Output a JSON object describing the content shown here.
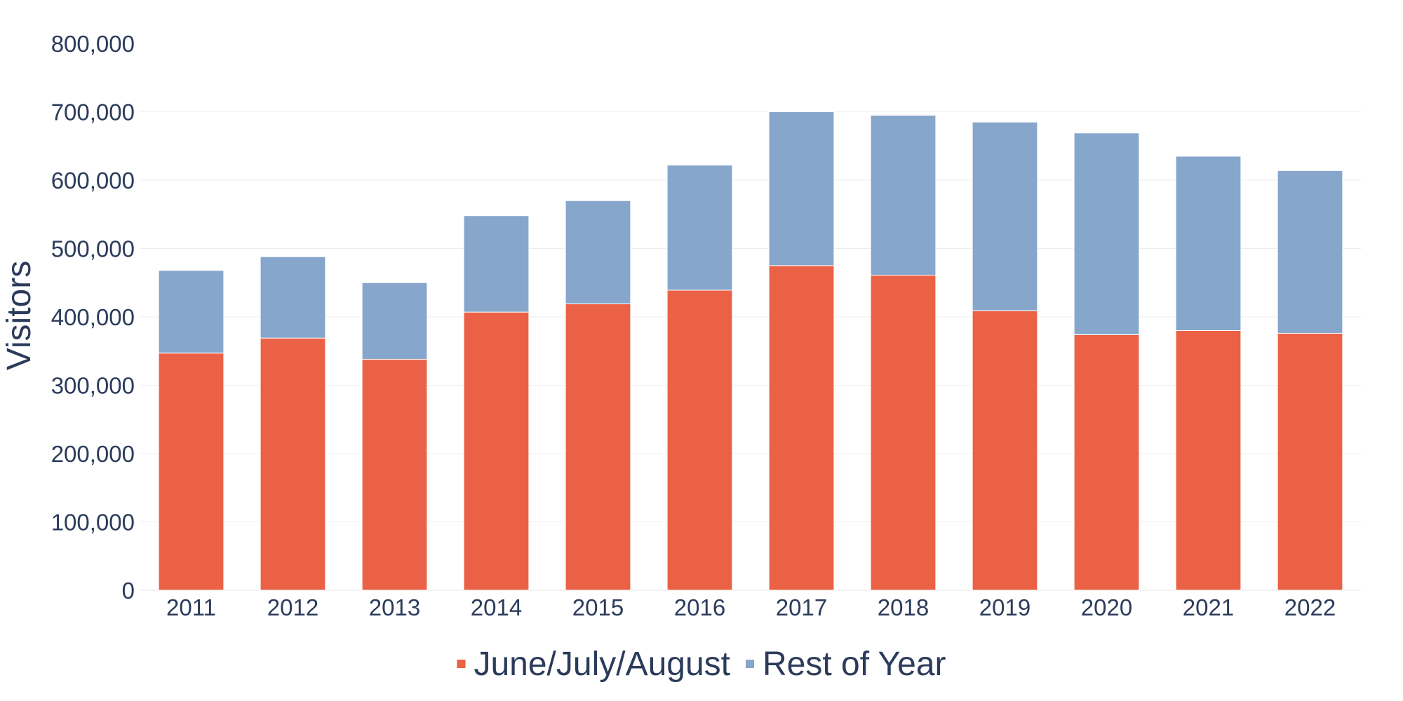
{
  "chart_data": {
    "type": "bar",
    "stacked": true,
    "categories": [
      "2011",
      "2012",
      "2013",
      "2014",
      "2015",
      "2016",
      "2017",
      "2018",
      "2019",
      "2020",
      "2021",
      "2022"
    ],
    "series": [
      {
        "name": "June/July/August",
        "color": "#eb6145",
        "values": [
          347000,
          369000,
          338000,
          407000,
          419000,
          439000,
          475000,
          461000,
          409000,
          374000,
          380000,
          376000
        ]
      },
      {
        "name": "Rest of Year",
        "color": "#86a6cc",
        "values": [
          121000,
          119000,
          112000,
          141000,
          151000,
          183000,
          225000,
          234000,
          276000,
          295000,
          255000,
          238000
        ]
      }
    ],
    "title": "",
    "xlabel": "",
    "ylabel": "Visitors",
    "ylim": [
      0,
      800000
    ],
    "yticks": [
      "0",
      "100,000",
      "200,000",
      "300,000",
      "400,000",
      "500,000",
      "600,000",
      "700,000",
      "800,000"
    ],
    "ytick_values": [
      0,
      100000,
      200000,
      300000,
      400000,
      500000,
      600000,
      700000,
      800000
    ],
    "grid": true,
    "legend_position": "bottom-center"
  }
}
